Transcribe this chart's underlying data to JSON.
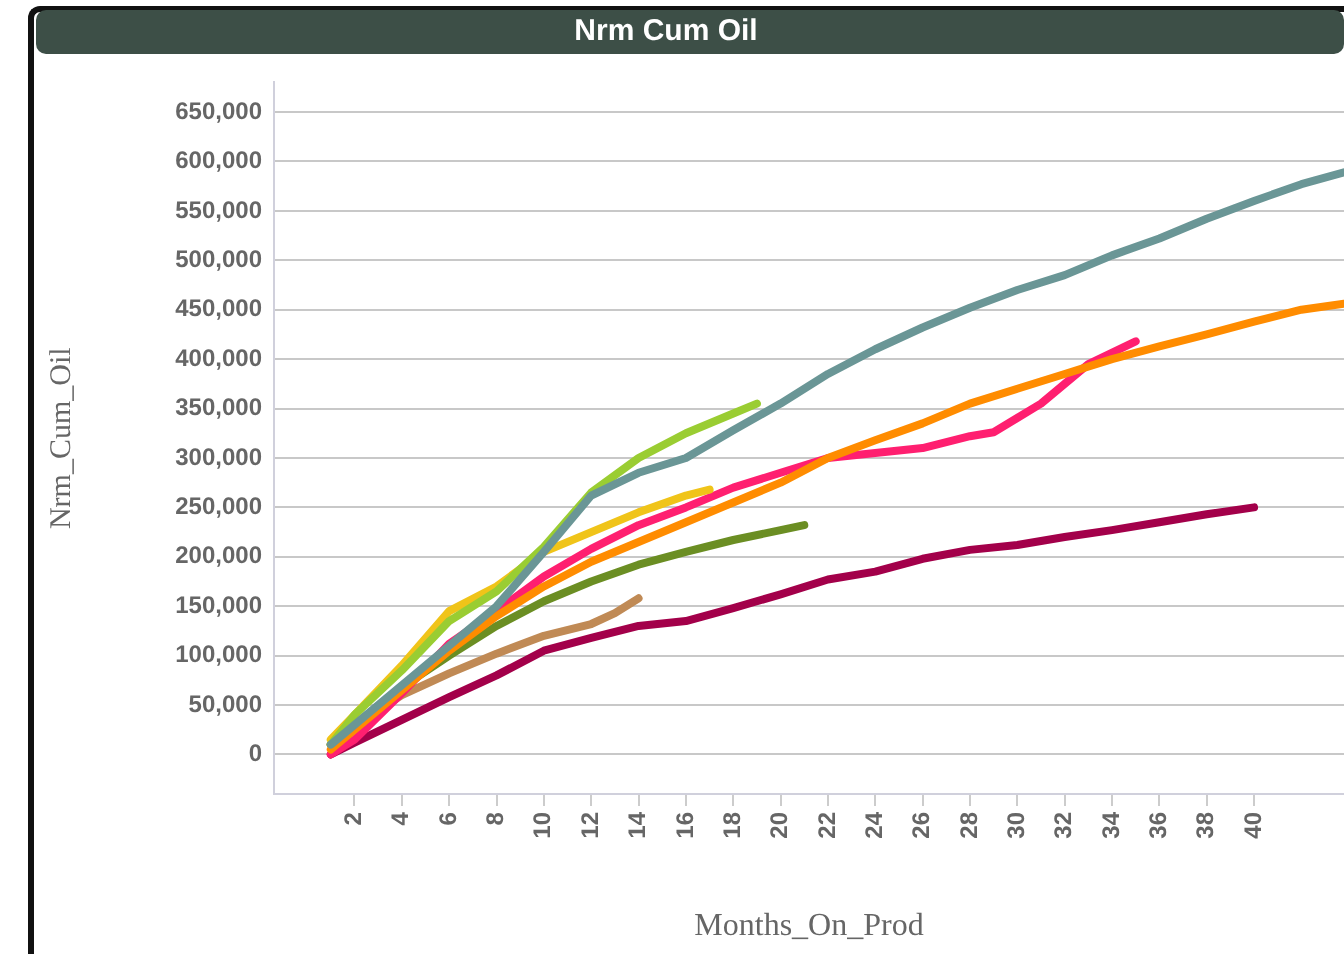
{
  "chart_data": {
    "type": "line",
    "title": "Nrm Cum Oil",
    "xlabel": "Months_On_Prod",
    "ylabel": "Nrm_Cum_Oil",
    "xlim": [
      -1.4,
      43.8
    ],
    "xticks": [
      2,
      4,
      6,
      8,
      10,
      12,
      14,
      16,
      18,
      20,
      22,
      24,
      26,
      28,
      30,
      32,
      34,
      36,
      38,
      40
    ],
    "ylim": [
      -40000,
      680000
    ],
    "yticks": [
      {
        "value": 0,
        "label": "0"
      },
      {
        "value": 50000,
        "label": "50,000"
      },
      {
        "value": 100000,
        "label": "100,000"
      },
      {
        "value": 150000,
        "label": "150,000"
      },
      {
        "value": 200000,
        "label": "200,000"
      },
      {
        "value": 250000,
        "label": "250,000"
      },
      {
        "value": 300000,
        "label": "300,000"
      },
      {
        "value": 350000,
        "label": "350,000"
      },
      {
        "value": 400000,
        "label": "400,000"
      },
      {
        "value": 450000,
        "label": "450,000"
      },
      {
        "value": 500000,
        "label": "500,000"
      },
      {
        "value": 550000,
        "label": "550,000"
      },
      {
        "value": 600000,
        "label": "600,000"
      },
      {
        "value": 650000,
        "label": "650,000"
      }
    ],
    "grid": "y",
    "legend": false,
    "marker": "none",
    "line_style": "solid",
    "series": [
      {
        "color": "#6a9696",
        "x": [
          1,
          2,
          4,
          6,
          8,
          10,
          12,
          14,
          16,
          18,
          20,
          22,
          24,
          26,
          28,
          30,
          32,
          34,
          36,
          38,
          40,
          42,
          43.8
        ],
        "values": [
          10000,
          30000,
          70000,
          110000,
          150000,
          205000,
          262000,
          285000,
          300000,
          328000,
          355000,
          385000,
          410000,
          432000,
          452000,
          470000,
          485000,
          505000,
          522000,
          542000,
          560000,
          577000,
          589000
        ]
      },
      {
        "color": "#ff8c00",
        "x": [
          1,
          2,
          4,
          6,
          8,
          10,
          12,
          14,
          16,
          18,
          20,
          22,
          24,
          26,
          28,
          30,
          32,
          34,
          36,
          38,
          40,
          42,
          43.8
        ],
        "values": [
          5000,
          25000,
          65000,
          105000,
          140000,
          170000,
          195000,
          215000,
          235000,
          255000,
          275000,
          300000,
          318000,
          335000,
          355000,
          370000,
          385000,
          400000,
          413000,
          425000,
          438000,
          450000,
          456000
        ]
      },
      {
        "color": "#9acd32",
        "x": [
          1,
          2,
          4,
          6,
          8,
          10,
          12,
          14,
          16,
          18,
          19
        ],
        "values": [
          10000,
          40000,
          85000,
          135000,
          165000,
          210000,
          265000,
          300000,
          325000,
          345000,
          355000
        ]
      },
      {
        "color": "#f0c419",
        "x": [
          1,
          2,
          4,
          6,
          8,
          10,
          12,
          14,
          16,
          17
        ],
        "values": [
          15000,
          40000,
          90000,
          145000,
          170000,
          205000,
          225000,
          245000,
          262000,
          268000
        ]
      },
      {
        "color": "#ff1f70",
        "x": [
          1,
          2,
          4,
          6,
          8,
          10,
          12,
          14,
          16,
          18,
          20,
          22,
          24,
          26,
          28,
          29,
          31,
          33,
          35
        ],
        "values": [
          0,
          15000,
          62000,
          112000,
          145000,
          180000,
          208000,
          232000,
          250000,
          270000,
          285000,
          300000,
          305000,
          310000,
          322000,
          326000,
          355000,
          395000,
          418000
        ]
      },
      {
        "color": "#6b8e23",
        "x": [
          1,
          2,
          4,
          6,
          8,
          10,
          12,
          14,
          16,
          18,
          20,
          21
        ],
        "values": [
          10000,
          30000,
          68000,
          100000,
          130000,
          155000,
          175000,
          192000,
          205000,
          217000,
          227000,
          232000
        ]
      },
      {
        "color": "#c08a55",
        "x": [
          1,
          2,
          4,
          6,
          8,
          10,
          12,
          13,
          14
        ],
        "values": [
          10000,
          30000,
          60000,
          82000,
          102000,
          120000,
          132000,
          143000,
          158000
        ]
      },
      {
        "color": "#a3004a",
        "x": [
          1,
          2,
          4,
          6,
          8,
          10,
          12,
          14,
          16,
          18,
          20,
          22,
          24,
          26,
          28,
          30,
          32,
          34,
          36,
          38,
          40
        ],
        "values": [
          0,
          12000,
          35000,
          58000,
          80000,
          105000,
          118000,
          130000,
          135000,
          148000,
          162000,
          177000,
          185000,
          198000,
          207000,
          212000,
          220000,
          227000,
          235000,
          243000,
          250000
        ]
      }
    ]
  }
}
